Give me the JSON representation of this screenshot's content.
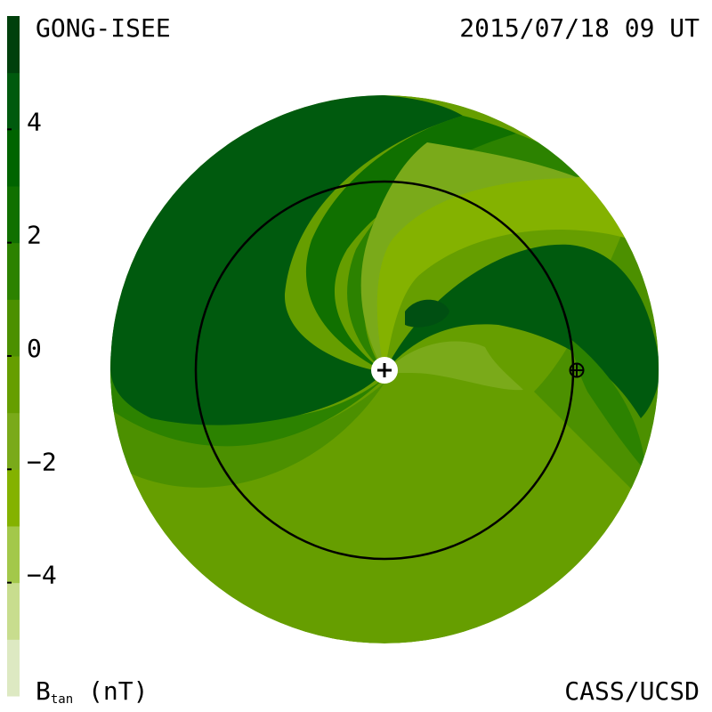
{
  "header": {
    "source": "GONG-ISEE",
    "date": "2015/07/18 09 UT"
  },
  "footer": {
    "units_main": "B",
    "units_sub": "tan",
    "units_rest": " (nT)",
    "credit": "CASS/UCSD"
  },
  "chart_data": {
    "type": "heatmap",
    "colorbar": {
      "min": -6,
      "max": 6,
      "step": 1,
      "ticks": [
        4,
        2,
        0,
        -2,
        -4
      ],
      "tick_labels": [
        "4",
        "2",
        "0",
        "−2",
        "−4"
      ],
      "colors": [
        "#dde9c2",
        "#c8dd8e",
        "#a3c84a",
        "#84b200",
        "#7aaa1a",
        "#669e00",
        "#4c9000",
        "#2c8200",
        "#107000",
        "#006400",
        "#005a0e",
        "#00400c"
      ]
    },
    "colors": {
      "disk_base": "#669e00",
      "sun_marker": "#ffffff",
      "orbit": "#000000"
    },
    "markers": [
      "sun-marker",
      "earth-marker"
    ]
  }
}
